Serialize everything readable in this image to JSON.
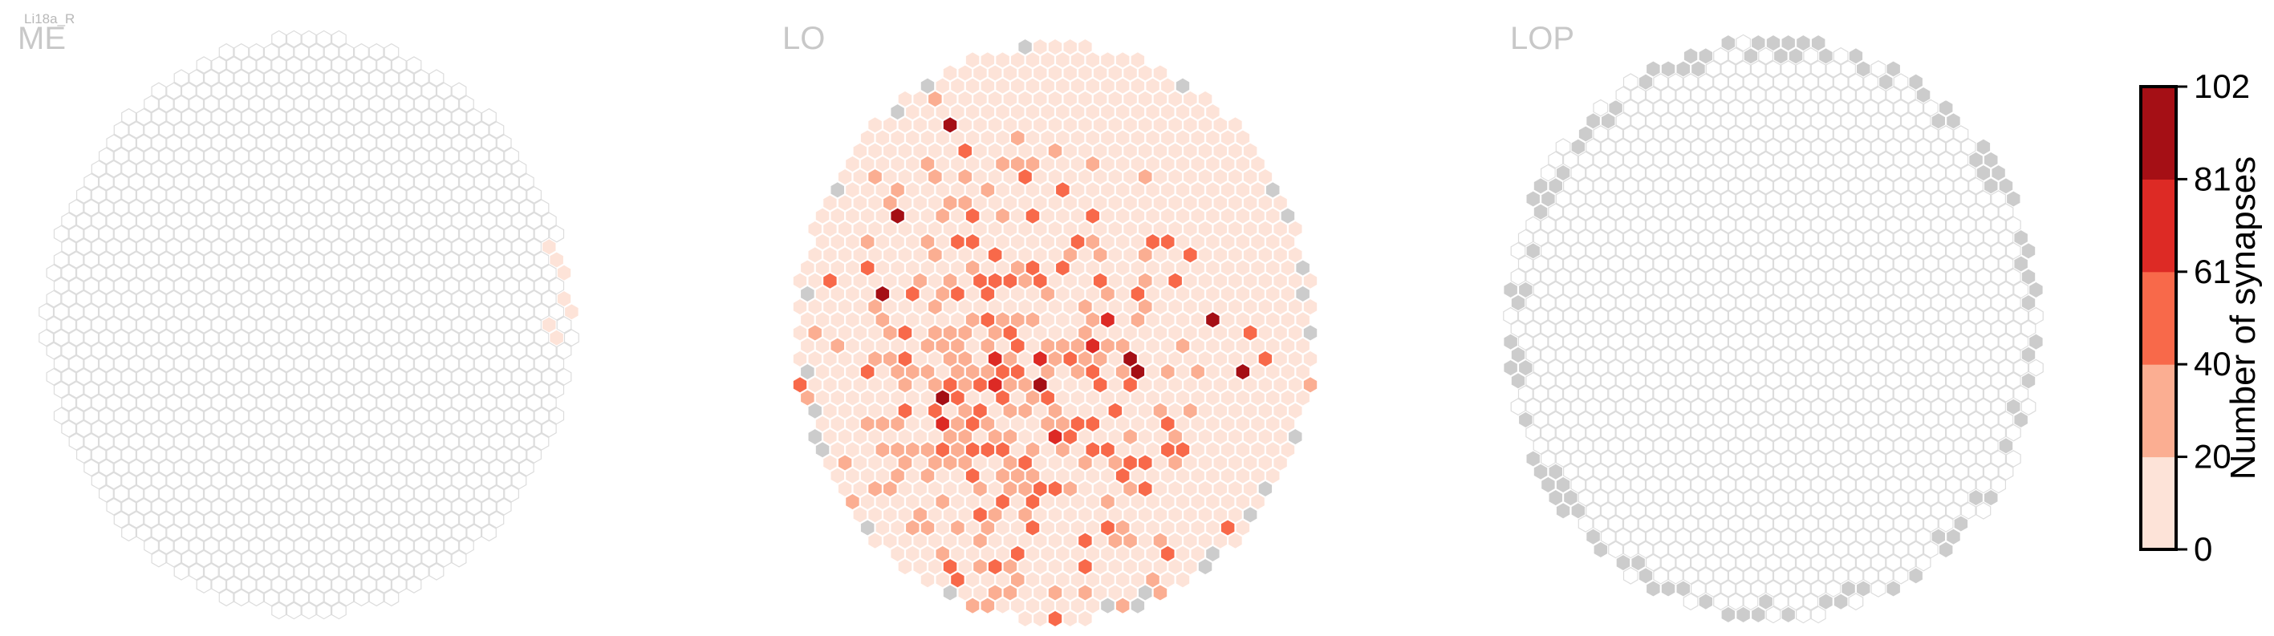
{
  "corner_label": "Li18a_R",
  "chart_data": {
    "type": "heatmap",
    "panels": [
      {
        "title": "ME"
      },
      {
        "title": "LO"
      },
      {
        "title": "LOP"
      }
    ],
    "colorbar": {
      "label": "Number of synapses",
      "ticks": [
        "0",
        "20",
        "40",
        "61",
        "81",
        "102"
      ],
      "range": [
        0,
        102
      ],
      "bin_colors": [
        "#fde3d8",
        "#fbae92",
        "#f8694a",
        "#dd2a25",
        "#a50f15"
      ]
    },
    "colors": {
      "empty_fill": "#ffffff",
      "empty_stroke": "#dcdcdc",
      "no_data": "#cccccc",
      "title": "#c8c8c8"
    }
  }
}
